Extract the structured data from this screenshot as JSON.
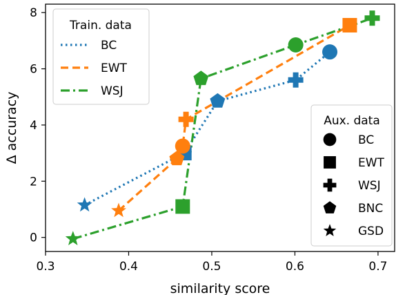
{
  "chart_data": {
    "type": "line",
    "title": "",
    "xlabel": "similarity score",
    "ylabel": "Δ accuracy",
    "xlim": [
      0.3,
      0.72
    ],
    "ylim": [
      -0.5,
      8.3
    ],
    "xticks": [
      0.3,
      0.4,
      0.5,
      0.6,
      0.7
    ],
    "xtick_labels": [
      "0.3",
      "0.4",
      "0.5",
      "0.6",
      "0.7"
    ],
    "yticks": [
      0,
      2,
      4,
      6,
      8
    ],
    "ytick_labels": [
      "0",
      "2",
      "4",
      "6",
      "8"
    ],
    "grid": false,
    "series": [
      {
        "name": "BC",
        "color": "#1f77b4",
        "dash": "dotted",
        "points": [
          {
            "x": 0.347,
            "y": 1.15,
            "marker": "star"
          },
          {
            "x": 0.467,
            "y": 3.0,
            "marker": "square"
          },
          {
            "x": 0.507,
            "y": 4.85,
            "marker": "pentagon"
          },
          {
            "x": 0.601,
            "y": 5.6,
            "marker": "plus"
          },
          {
            "x": 0.642,
            "y": 6.6,
            "marker": "circle"
          }
        ]
      },
      {
        "name": "EWT",
        "color": "#ff7f0e",
        "dash": "dashed",
        "points": [
          {
            "x": 0.388,
            "y": 0.95,
            "marker": "star"
          },
          {
            "x": 0.458,
            "y": 2.8,
            "marker": "pentagon"
          },
          {
            "x": 0.465,
            "y": 3.25,
            "marker": "circle"
          },
          {
            "x": 0.469,
            "y": 4.2,
            "marker": "plus"
          },
          {
            "x": 0.666,
            "y": 7.55,
            "marker": "square"
          }
        ]
      },
      {
        "name": "WSJ",
        "color": "#2ca02c",
        "dash": "dashdot",
        "points": [
          {
            "x": 0.333,
            "y": -0.05,
            "marker": "star"
          },
          {
            "x": 0.465,
            "y": 1.1,
            "marker": "square"
          },
          {
            "x": 0.487,
            "y": 5.65,
            "marker": "pentagon"
          },
          {
            "x": 0.601,
            "y": 6.85,
            "marker": "circle"
          },
          {
            "x": 0.693,
            "y": 7.8,
            "marker": "plus"
          }
        ]
      }
    ],
    "legends": [
      {
        "title": "Train. data",
        "placement": "top-left",
        "entries": [
          "BC",
          "EWT",
          "WSJ"
        ]
      },
      {
        "title": "Aux. data",
        "placement": "bottom-right",
        "entries": [
          {
            "label": "BC",
            "marker": "circle"
          },
          {
            "label": "EWT",
            "marker": "square"
          },
          {
            "label": "WSJ",
            "marker": "plus"
          },
          {
            "label": "BNC",
            "marker": "pentagon"
          },
          {
            "label": "GSD",
            "marker": "star"
          }
        ]
      }
    ]
  }
}
